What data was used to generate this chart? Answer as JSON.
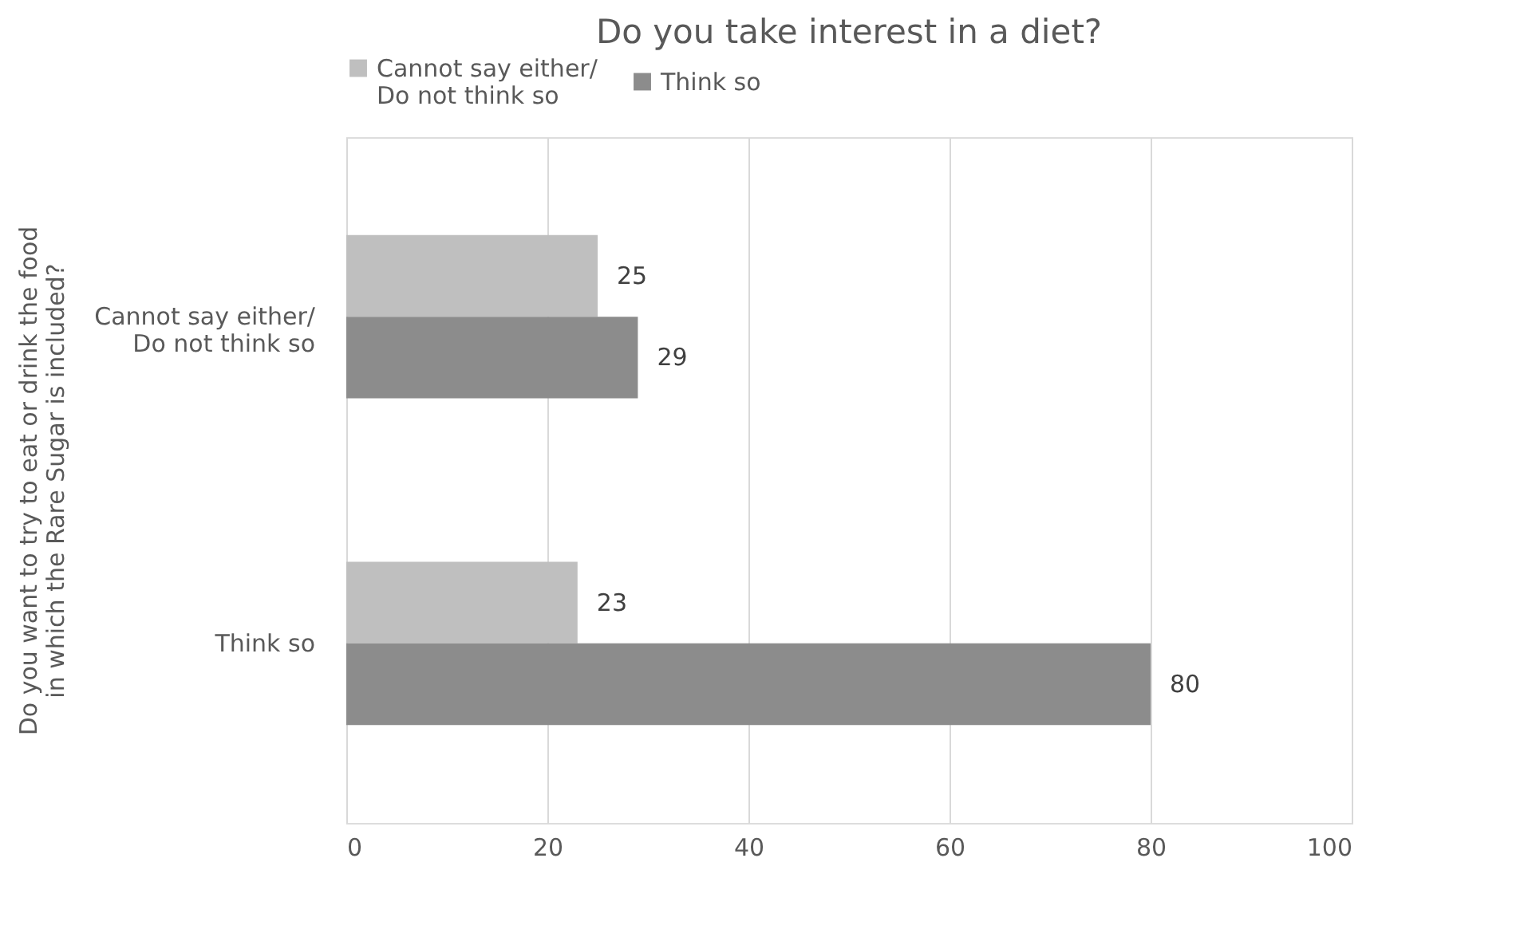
{
  "chart_data": {
    "type": "bar",
    "orientation": "horizontal",
    "title": "Do you take interest in a diet?",
    "ylabel": "Do you want to try to eat or drink the food\nin which the Rare Sugar is included?",
    "categories": [
      "Cannot say either/\nDo not think so",
      "Think so"
    ],
    "series": [
      {
        "name": "Cannot say either/\nDo not think so",
        "color": "#bfbfbf",
        "values": [
          25,
          23
        ]
      },
      {
        "name": "Think so",
        "color": "#8c8c8c",
        "values": [
          29,
          80
        ]
      }
    ],
    "xlim": [
      0,
      100
    ],
    "xticks": [
      0,
      20,
      40,
      60,
      80,
      100
    ],
    "grid": "x",
    "legend": "top",
    "data_labels": true
  }
}
